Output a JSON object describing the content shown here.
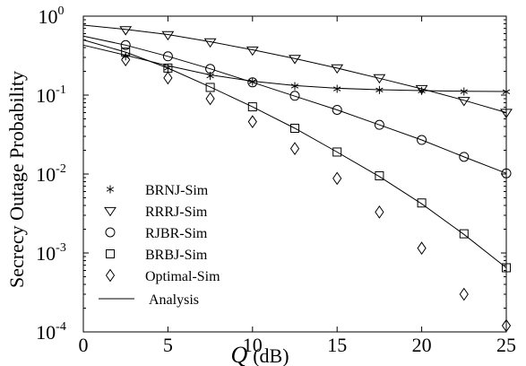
{
  "chart_data": {
    "type": "line",
    "x_scale": "linear",
    "y_scale": "log",
    "xlim": [
      0,
      25
    ],
    "ylim": [
      0.0001,
      1
    ],
    "xticks": [
      0,
      5,
      10,
      15,
      20,
      25
    ],
    "xtick_labels": [
      "0",
      "5",
      "10",
      "15",
      "20",
      "25"
    ],
    "yticks": [
      1,
      0.1,
      0.01,
      0.001,
      0.0001
    ],
    "ytick_labels": [
      {
        "base": "10",
        "exp": "0"
      },
      {
        "base": "10",
        "exp": "-1"
      },
      {
        "base": "10",
        "exp": "-2"
      },
      {
        "base": "10",
        "exp": "-3"
      },
      {
        "base": "10",
        "exp": "-4"
      }
    ],
    "xlabel_symbol": "Q",
    "xlabel_unit": "(dB)",
    "ylabel": "Secrecy Outage Probability",
    "grid": false,
    "legend_position": "left",
    "series": [
      {
        "name": "BRNJ-Sim",
        "marker": "star",
        "x": [
          2.5,
          5,
          7.5,
          10,
          12.5,
          15,
          17.5,
          20,
          22.5,
          25
        ],
        "y": [
          0.31,
          0.22,
          0.175,
          0.148,
          0.13,
          0.12,
          0.116,
          0.113,
          0.111,
          0.11
        ],
        "analysis": [
          [
            0,
            0.43
          ],
          [
            2.5,
            0.32
          ],
          [
            5,
            0.235
          ],
          [
            7.5,
            0.18
          ],
          [
            10,
            0.15
          ],
          [
            12.5,
            0.132
          ],
          [
            15,
            0.122
          ],
          [
            17.5,
            0.117
          ],
          [
            20,
            0.114
          ],
          [
            22.5,
            0.112
          ],
          [
            25,
            0.111
          ]
        ]
      },
      {
        "name": "RRRJ-Sim",
        "marker": "triangle-down",
        "x": [
          2.5,
          5,
          7.5,
          10,
          12.5,
          15,
          17.5,
          20,
          22.5,
          25
        ],
        "y": [
          0.67,
          0.58,
          0.47,
          0.37,
          0.29,
          0.22,
          0.165,
          0.12,
          0.085,
          0.06
        ],
        "analysis": [
          [
            0,
            0.77
          ],
          [
            2.5,
            0.68
          ],
          [
            5,
            0.585
          ],
          [
            7.5,
            0.475
          ],
          [
            10,
            0.375
          ],
          [
            12.5,
            0.29
          ],
          [
            15,
            0.22
          ],
          [
            17.5,
            0.163
          ],
          [
            20,
            0.12
          ],
          [
            22.5,
            0.086
          ],
          [
            25,
            0.06
          ]
        ]
      },
      {
        "name": "RJBR-Sim",
        "marker": "circle",
        "x": [
          2.5,
          5,
          7.5,
          10,
          12.5,
          15,
          17.5,
          20,
          22.5,
          25
        ],
        "y": [
          0.43,
          0.31,
          0.215,
          0.145,
          0.098,
          0.065,
          0.042,
          0.027,
          0.0165,
          0.0102
        ],
        "analysis": [
          [
            0,
            0.56
          ],
          [
            2.5,
            0.43
          ],
          [
            5,
            0.31
          ],
          [
            7.5,
            0.215
          ],
          [
            10,
            0.145
          ],
          [
            12.5,
            0.097
          ],
          [
            15,
            0.065
          ],
          [
            17.5,
            0.042
          ],
          [
            20,
            0.027
          ],
          [
            22.5,
            0.0165
          ],
          [
            25,
            0.0102
          ]
        ]
      },
      {
        "name": "BRBJ-Sim",
        "marker": "square",
        "x": [
          2.5,
          5,
          7.5,
          10,
          12.5,
          15,
          17.5,
          20,
          22.5,
          25
        ],
        "y": [
          0.35,
          0.22,
          0.125,
          0.071,
          0.038,
          0.019,
          0.0095,
          0.0043,
          0.00175,
          0.00065
        ],
        "analysis": [
          [
            0,
            0.5
          ],
          [
            2.5,
            0.35
          ],
          [
            5,
            0.22
          ],
          [
            7.5,
            0.127
          ],
          [
            10,
            0.071
          ],
          [
            12.5,
            0.038
          ],
          [
            15,
            0.019
          ],
          [
            17.5,
            0.0093
          ],
          [
            20,
            0.0042
          ],
          [
            22.5,
            0.00172
          ],
          [
            25,
            0.00065
          ]
        ]
      },
      {
        "name": "Optimal-Sim",
        "marker": "diamond",
        "x": [
          2.5,
          5,
          7.5,
          10,
          12.5,
          15,
          17.5,
          20,
          22.5,
          25
        ],
        "y": [
          0.28,
          0.165,
          0.09,
          0.046,
          0.021,
          0.0088,
          0.0033,
          0.00115,
          0.0003,
          0.00012
        ],
        "analysis": null
      }
    ],
    "legend_analysis_label": "Analysis"
  }
}
